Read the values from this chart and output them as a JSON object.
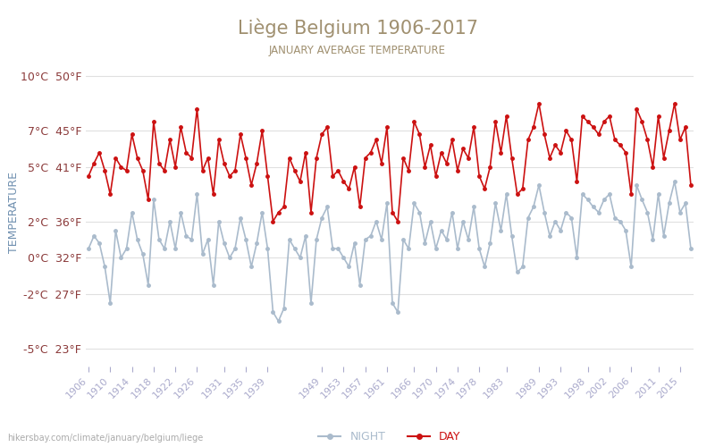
{
  "title": "Liège Belgium 1906-2017",
  "subtitle": "JANUARY AVERAGE TEMPERATURE",
  "ylabel": "TEMPERATURE",
  "background_color": "#ffffff",
  "title_color": "#a09070",
  "subtitle_color": "#a09070",
  "ylabel_color": "#7090b0",
  "axis_label_color": "#8b3a3a",
  "tick_color": "#aaaacc",
  "grid_color": "#e0e0e0",
  "day_color": "#cc1111",
  "night_color": "#aabbcc",
  "years": [
    1906,
    1907,
    1908,
    1909,
    1910,
    1911,
    1912,
    1913,
    1914,
    1915,
    1916,
    1917,
    1918,
    1919,
    1920,
    1921,
    1922,
    1923,
    1924,
    1925,
    1926,
    1927,
    1928,
    1929,
    1930,
    1931,
    1932,
    1933,
    1934,
    1935,
    1936,
    1937,
    1938,
    1939,
    1940,
    1941,
    1942,
    1943,
    1944,
    1945,
    1946,
    1947,
    1948,
    1949,
    1950,
    1951,
    1952,
    1953,
    1954,
    1955,
    1956,
    1957,
    1958,
    1959,
    1960,
    1961,
    1962,
    1963,
    1964,
    1965,
    1966,
    1967,
    1968,
    1969,
    1970,
    1971,
    1972,
    1973,
    1974,
    1975,
    1976,
    1977,
    1978,
    1979,
    1980,
    1981,
    1982,
    1983,
    1984,
    1985,
    1986,
    1987,
    1988,
    1989,
    1990,
    1991,
    1992,
    1993,
    1994,
    1995,
    1996,
    1997,
    1998,
    1999,
    2000,
    2001,
    2002,
    2003,
    2004,
    2005,
    2006,
    2007,
    2008,
    2009,
    2010,
    2011,
    2012,
    2013,
    2014,
    2015,
    2016,
    2017
  ],
  "day_temps": [
    4.5,
    5.2,
    5.8,
    4.8,
    3.5,
    5.5,
    5.0,
    4.8,
    6.8,
    5.5,
    4.8,
    3.2,
    7.5,
    5.2,
    4.8,
    6.5,
    5.0,
    7.2,
    5.8,
    5.5,
    8.2,
    4.8,
    5.5,
    3.5,
    6.5,
    5.2,
    4.5,
    4.8,
    6.8,
    5.5,
    4.0,
    5.2,
    7.0,
    4.5,
    2.0,
    2.5,
    2.8,
    5.5,
    4.8,
    4.2,
    5.8,
    2.5,
    5.5,
    6.8,
    7.2,
    4.5,
    4.8,
    4.2,
    3.8,
    5.0,
    2.8,
    5.5,
    5.8,
    6.5,
    5.2,
    7.2,
    2.5,
    2.0,
    5.5,
    4.8,
    7.5,
    6.8,
    5.0,
    6.2,
    4.5,
    5.8,
    5.2,
    6.5,
    4.8,
    6.0,
    5.5,
    7.2,
    4.5,
    3.8,
    5.0,
    7.5,
    5.8,
    7.8,
    5.5,
    3.5,
    3.8,
    6.5,
    7.2,
    8.5,
    6.8,
    5.5,
    6.2,
    5.8,
    7.0,
    6.5,
    4.2,
    7.8,
    7.5,
    7.2,
    6.8,
    7.5,
    7.8,
    6.5,
    6.2,
    5.8,
    3.5,
    8.2,
    7.5,
    6.5,
    5.0,
    7.8,
    5.5,
    7.0,
    8.5,
    6.5,
    7.2,
    4.0
  ],
  "night_temps": [
    0.5,
    1.2,
    0.8,
    -0.5,
    -2.5,
    1.5,
    0.0,
    0.5,
    2.5,
    1.0,
    0.2,
    -1.5,
    3.2,
    1.0,
    0.5,
    2.0,
    0.5,
    2.5,
    1.2,
    1.0,
    3.5,
    0.2,
    1.0,
    -1.5,
    2.0,
    0.8,
    0.0,
    0.5,
    2.2,
    1.0,
    -0.5,
    0.8,
    2.5,
    0.5,
    -3.0,
    -3.5,
    -2.8,
    1.0,
    0.5,
    0.0,
    1.2,
    -2.5,
    1.0,
    2.2,
    2.8,
    0.5,
    0.5,
    0.0,
    -0.5,
    0.8,
    -1.5,
    1.0,
    1.2,
    2.0,
    1.0,
    3.0,
    -2.5,
    -3.0,
    1.0,
    0.5,
    3.0,
    2.5,
    0.8,
    2.0,
    0.5,
    1.5,
    1.0,
    2.5,
    0.5,
    2.0,
    1.0,
    2.8,
    0.5,
    -0.5,
    0.8,
    3.0,
    1.5,
    3.5,
    1.2,
    -0.8,
    -0.5,
    2.2,
    2.8,
    4.0,
    2.5,
    1.2,
    2.0,
    1.5,
    2.5,
    2.2,
    0.0,
    3.5,
    3.2,
    2.8,
    2.5,
    3.2,
    3.5,
    2.2,
    2.0,
    1.5,
    -0.5,
    4.0,
    3.2,
    2.5,
    1.0,
    3.5,
    1.2,
    3.0,
    4.2,
    2.5,
    3.0,
    0.5
  ],
  "yticks_c": [
    10,
    7,
    5,
    2,
    0,
    -2,
    -5
  ],
  "yticks_f": [
    50,
    45,
    41,
    36,
    32,
    27,
    23
  ],
  "xtick_labels": [
    "1906",
    "1910",
    "1914",
    "1918",
    "1922",
    "1926",
    "1931",
    "1935",
    "1939",
    "1949",
    "1953",
    "1957",
    "1961",
    "1966",
    "1970",
    "1974",
    "1978",
    "1983",
    "1989",
    "1993",
    "1998",
    "2002",
    "2006",
    "2011",
    "2015"
  ],
  "ylim": [
    -6,
    11
  ],
  "website": "hikersbay.com/climate/january/belgium/liege"
}
